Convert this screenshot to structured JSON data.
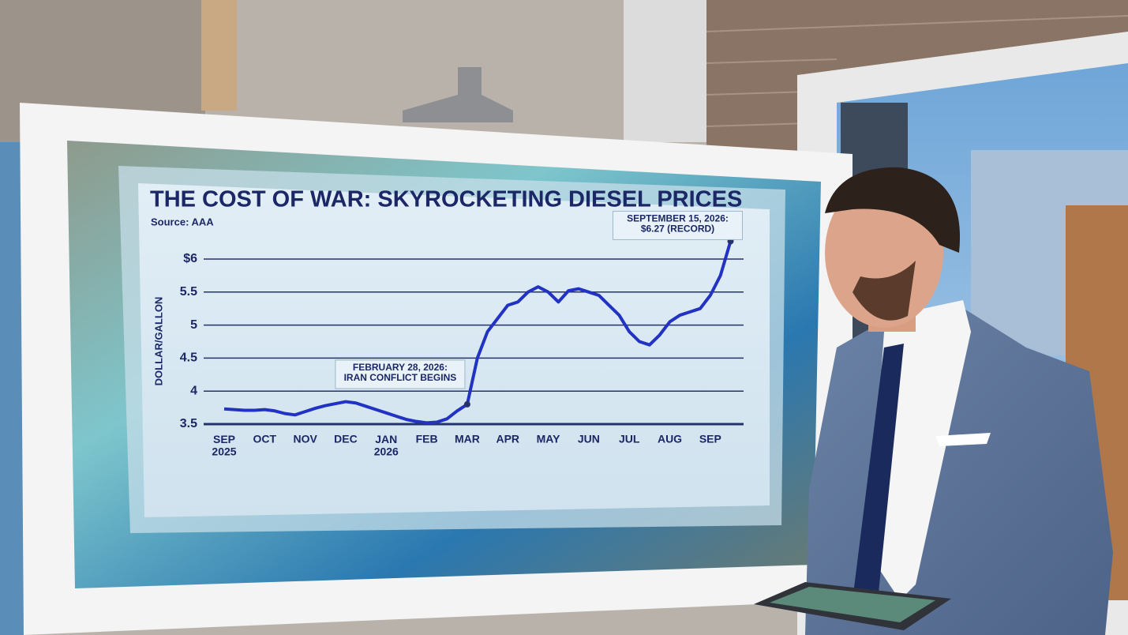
{
  "chart_data": {
    "type": "line",
    "title": "THE COST OF WAR: SKYROCKETING DIESEL PRICES",
    "subtitle": "Source: AAA",
    "y_label": "DOLLAR/GALLON",
    "categories": [
      "SEP\n2025",
      null,
      null,
      null,
      "OCT",
      null,
      null,
      null,
      "NOV",
      null,
      null,
      null,
      "DEC",
      null,
      null,
      null,
      "JAN\n2026",
      null,
      null,
      null,
      "FEB",
      null,
      null,
      null,
      "MAR",
      null,
      null,
      null,
      "APR",
      null,
      null,
      null,
      "MAY",
      null,
      null,
      null,
      "JUN",
      null,
      null,
      null,
      "JUL",
      null,
      null,
      null,
      "AUG",
      null,
      null,
      null,
      "SEP",
      null,
      null
    ],
    "values": [
      3.73,
      3.72,
      3.71,
      3.71,
      3.72,
      3.7,
      3.66,
      3.64,
      3.69,
      3.74,
      3.78,
      3.81,
      3.84,
      3.82,
      3.77,
      3.72,
      3.67,
      3.62,
      3.57,
      3.54,
      3.52,
      3.53,
      3.58,
      3.7,
      3.8,
      4.5,
      4.9,
      5.1,
      5.3,
      5.35,
      5.5,
      5.58,
      5.5,
      5.35,
      5.52,
      5.55,
      5.5,
      5.45,
      5.3,
      5.15,
      4.9,
      4.75,
      4.7,
      4.85,
      5.05,
      5.15,
      5.2,
      5.25,
      5.45,
      5.75,
      6.27
    ],
    "color": "#2233c4",
    "ylim": [
      3.5,
      6.2
    ],
    "yticks": [
      3.5,
      4,
      4.5,
      5,
      5.5,
      {
        "value": 6,
        "label": "$6"
      }
    ],
    "grid": true,
    "annotations": [
      {
        "text": "FEBRUARY 28, 2026:\nIRAN CONFLICT BEGINS",
        "index": 24
      },
      {
        "text": "SEPTEMBER 15, 2026:\n$6.27 (RECORD)",
        "index": 50
      }
    ]
  }
}
